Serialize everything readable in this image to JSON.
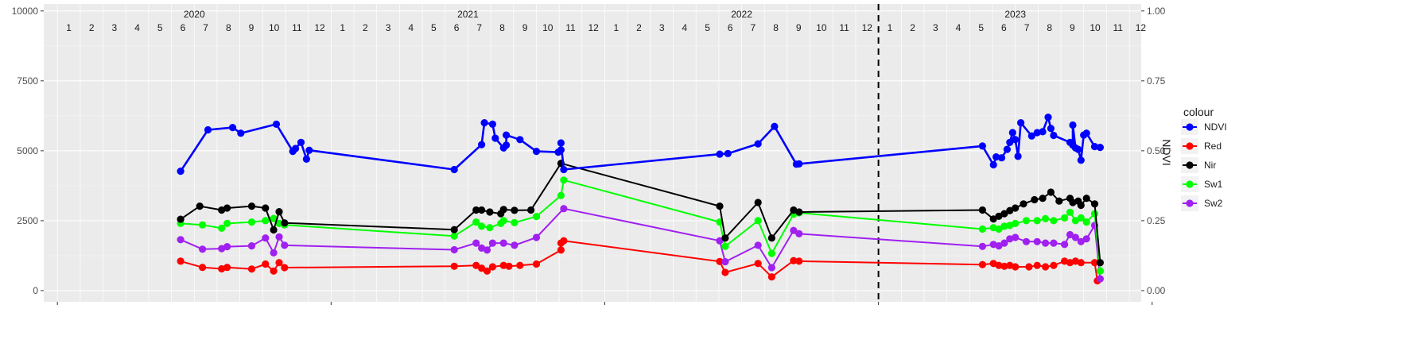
{
  "chart_data": {
    "type": "line",
    "title": "",
    "xlabel": "",
    "ylabel": "",
    "y2label": "NDVI",
    "ylim": [
      0,
      10000
    ],
    "y2lim": [
      0,
      1
    ],
    "y_ticks": [
      "0",
      "2500",
      "5000",
      "7500",
      "10000"
    ],
    "y2_ticks": [
      "0.00",
      "0.25",
      "0.50",
      "0.75",
      "1.00"
    ],
    "years": [
      "2020",
      "2021",
      "2022",
      "2023"
    ],
    "months": [
      "1",
      "2",
      "3",
      "4",
      "5",
      "6",
      "7",
      "8",
      "9",
      "10",
      "11",
      "12"
    ],
    "grid": true,
    "legend_title": "colour",
    "legend_position": "right",
    "vline_x": 2023.0,
    "series": [
      {
        "name": "NDVI",
        "color": "#0000ff",
        "points": [
          [
            2020.45,
            4270
          ],
          [
            2020.55,
            5750
          ],
          [
            2020.64,
            5830
          ],
          [
            2020.67,
            5630
          ],
          [
            2020.8,
            5950
          ],
          [
            2020.86,
            4980
          ],
          [
            2020.87,
            5080
          ],
          [
            2020.89,
            5300
          ],
          [
            2020.91,
            4700
          ],
          [
            2020.92,
            5020
          ],
          [
            2021.45,
            4330
          ],
          [
            2021.55,
            5220
          ],
          [
            2021.56,
            6000
          ],
          [
            2021.59,
            5950
          ],
          [
            2021.6,
            5450
          ],
          [
            2021.63,
            5100
          ],
          [
            2021.64,
            5200
          ],
          [
            2021.64,
            5560
          ],
          [
            2021.69,
            5400
          ],
          [
            2021.75,
            4980
          ],
          [
            2021.83,
            4950
          ],
          [
            2021.84,
            5030
          ],
          [
            2021.84,
            5280
          ],
          [
            2021.85,
            4330
          ],
          [
            2022.42,
            4880
          ],
          [
            2022.45,
            4900
          ],
          [
            2022.56,
            5250
          ],
          [
            2022.62,
            5870
          ],
          [
            2022.7,
            4520
          ],
          [
            2022.71,
            4530
          ],
          [
            2023.38,
            5170
          ],
          [
            2023.42,
            4500
          ],
          [
            2023.43,
            4780
          ],
          [
            2023.45,
            4750
          ],
          [
            2023.47,
            5050
          ],
          [
            2023.48,
            5300
          ],
          [
            2023.49,
            5650
          ],
          [
            2023.5,
            5400
          ],
          [
            2023.51,
            4800
          ],
          [
            2023.52,
            6000
          ],
          [
            2023.56,
            5530
          ],
          [
            2023.58,
            5650
          ],
          [
            2023.6,
            5680
          ],
          [
            2023.62,
            6200
          ],
          [
            2023.63,
            5800
          ],
          [
            2023.64,
            5550
          ],
          [
            2023.7,
            5300
          ],
          [
            2023.71,
            5200
          ],
          [
            2023.71,
            5920
          ],
          [
            2023.72,
            5100
          ],
          [
            2023.73,
            5050
          ],
          [
            2023.74,
            4660
          ],
          [
            2023.75,
            5560
          ],
          [
            2023.76,
            5630
          ],
          [
            2023.79,
            5150
          ],
          [
            2023.81,
            5120
          ]
        ]
      },
      {
        "name": "Red",
        "color": "#ff0000",
        "points": [
          [
            2020.45,
            1050
          ],
          [
            2020.53,
            830
          ],
          [
            2020.6,
            780
          ],
          [
            2020.62,
            830
          ],
          [
            2020.71,
            770
          ],
          [
            2020.76,
            950
          ],
          [
            2020.79,
            700
          ],
          [
            2020.81,
            1000
          ],
          [
            2020.83,
            820
          ],
          [
            2021.45,
            870
          ],
          [
            2021.53,
            900
          ],
          [
            2021.55,
            800
          ],
          [
            2021.57,
            700
          ],
          [
            2021.59,
            850
          ],
          [
            2021.63,
            900
          ],
          [
            2021.65,
            870
          ],
          [
            2021.69,
            900
          ],
          [
            2021.75,
            950
          ],
          [
            2021.84,
            1450
          ],
          [
            2021.84,
            1700
          ],
          [
            2021.85,
            1780
          ],
          [
            2022.42,
            1040
          ],
          [
            2022.44,
            650
          ],
          [
            2022.56,
            970
          ],
          [
            2022.61,
            490
          ],
          [
            2022.69,
            1070
          ],
          [
            2022.71,
            1050
          ],
          [
            2023.38,
            930
          ],
          [
            2023.42,
            970
          ],
          [
            2023.44,
            900
          ],
          [
            2023.46,
            870
          ],
          [
            2023.48,
            900
          ],
          [
            2023.5,
            850
          ],
          [
            2023.55,
            850
          ],
          [
            2023.58,
            900
          ],
          [
            2023.61,
            850
          ],
          [
            2023.64,
            900
          ],
          [
            2023.68,
            1050
          ],
          [
            2023.7,
            1000
          ],
          [
            2023.72,
            1050
          ],
          [
            2023.74,
            1000
          ],
          [
            2023.79,
            1000
          ],
          [
            2023.8,
            350
          ]
        ]
      },
      {
        "name": "Nir",
        "color": "#000000",
        "points": [
          [
            2020.45,
            2550
          ],
          [
            2020.52,
            3020
          ],
          [
            2020.6,
            2880
          ],
          [
            2020.62,
            2950
          ],
          [
            2020.71,
            3020
          ],
          [
            2020.76,
            2950
          ],
          [
            2020.79,
            2170
          ],
          [
            2020.81,
            2820
          ],
          [
            2020.83,
            2420
          ],
          [
            2021.45,
            2180
          ],
          [
            2021.53,
            2880
          ],
          [
            2021.55,
            2880
          ],
          [
            2021.58,
            2810
          ],
          [
            2021.62,
            2750
          ],
          [
            2021.63,
            2900
          ],
          [
            2021.67,
            2870
          ],
          [
            2021.73,
            2880
          ],
          [
            2021.84,
            4550
          ],
          [
            2022.42,
            3020
          ],
          [
            2022.44,
            1880
          ],
          [
            2022.56,
            3150
          ],
          [
            2022.61,
            1880
          ],
          [
            2022.69,
            2880
          ],
          [
            2022.71,
            2810
          ],
          [
            2023.38,
            2880
          ],
          [
            2023.42,
            2560
          ],
          [
            2023.44,
            2660
          ],
          [
            2023.46,
            2750
          ],
          [
            2023.48,
            2860
          ],
          [
            2023.5,
            2950
          ],
          [
            2023.53,
            3100
          ],
          [
            2023.57,
            3250
          ],
          [
            2023.6,
            3300
          ],
          [
            2023.63,
            3520
          ],
          [
            2023.66,
            3200
          ],
          [
            2023.7,
            3300
          ],
          [
            2023.71,
            3150
          ],
          [
            2023.73,
            3200
          ],
          [
            2023.74,
            3050
          ],
          [
            2023.76,
            3300
          ],
          [
            2023.79,
            3100
          ],
          [
            2023.81,
            1000
          ]
        ]
      },
      {
        "name": "Sw1",
        "color": "#00ff00",
        "points": [
          [
            2020.45,
            2400
          ],
          [
            2020.53,
            2350
          ],
          [
            2020.6,
            2230
          ],
          [
            2020.62,
            2400
          ],
          [
            2020.71,
            2450
          ],
          [
            2020.76,
            2500
          ],
          [
            2020.79,
            2580
          ],
          [
            2020.81,
            2400
          ],
          [
            2020.83,
            2350
          ],
          [
            2021.45,
            1950
          ],
          [
            2021.53,
            2450
          ],
          [
            2021.55,
            2300
          ],
          [
            2021.58,
            2250
          ],
          [
            2021.62,
            2400
          ],
          [
            2021.63,
            2500
          ],
          [
            2021.67,
            2430
          ],
          [
            2021.75,
            2650
          ],
          [
            2021.84,
            3400
          ],
          [
            2021.85,
            3950
          ],
          [
            2022.42,
            2450
          ],
          [
            2022.44,
            1580
          ],
          [
            2022.56,
            2500
          ],
          [
            2022.61,
            1330
          ],
          [
            2022.69,
            2730
          ],
          [
            2022.71,
            2780
          ],
          [
            2023.38,
            2200
          ],
          [
            2023.42,
            2250
          ],
          [
            2023.44,
            2200
          ],
          [
            2023.46,
            2300
          ],
          [
            2023.48,
            2330
          ],
          [
            2023.5,
            2400
          ],
          [
            2023.54,
            2500
          ],
          [
            2023.58,
            2500
          ],
          [
            2023.61,
            2570
          ],
          [
            2023.64,
            2500
          ],
          [
            2023.68,
            2600
          ],
          [
            2023.7,
            2800
          ],
          [
            2023.72,
            2500
          ],
          [
            2023.74,
            2600
          ],
          [
            2023.76,
            2450
          ],
          [
            2023.79,
            2750
          ],
          [
            2023.81,
            700
          ]
        ]
      },
      {
        "name": "Sw2",
        "color": "#a020f0",
        "points": [
          [
            2020.45,
            1820
          ],
          [
            2020.53,
            1480
          ],
          [
            2020.6,
            1500
          ],
          [
            2020.62,
            1570
          ],
          [
            2020.71,
            1600
          ],
          [
            2020.76,
            1880
          ],
          [
            2020.79,
            1350
          ],
          [
            2020.81,
            1920
          ],
          [
            2020.83,
            1620
          ],
          [
            2021.45,
            1460
          ],
          [
            2021.53,
            1700
          ],
          [
            2021.55,
            1520
          ],
          [
            2021.57,
            1450
          ],
          [
            2021.59,
            1700
          ],
          [
            2021.63,
            1700
          ],
          [
            2021.67,
            1620
          ],
          [
            2021.75,
            1900
          ],
          [
            2021.85,
            2930
          ],
          [
            2022.42,
            1780
          ],
          [
            2022.44,
            1030
          ],
          [
            2022.56,
            1620
          ],
          [
            2022.61,
            820
          ],
          [
            2022.69,
            2150
          ],
          [
            2022.71,
            2030
          ],
          [
            2023.38,
            1580
          ],
          [
            2023.42,
            1650
          ],
          [
            2023.44,
            1600
          ],
          [
            2023.46,
            1700
          ],
          [
            2023.48,
            1850
          ],
          [
            2023.5,
            1900
          ],
          [
            2023.54,
            1750
          ],
          [
            2023.58,
            1750
          ],
          [
            2023.61,
            1700
          ],
          [
            2023.64,
            1700
          ],
          [
            2023.68,
            1650
          ],
          [
            2023.7,
            2000
          ],
          [
            2023.72,
            1900
          ],
          [
            2023.74,
            1750
          ],
          [
            2023.76,
            1850
          ],
          [
            2023.79,
            2330
          ],
          [
            2023.81,
            420
          ]
        ]
      }
    ]
  }
}
